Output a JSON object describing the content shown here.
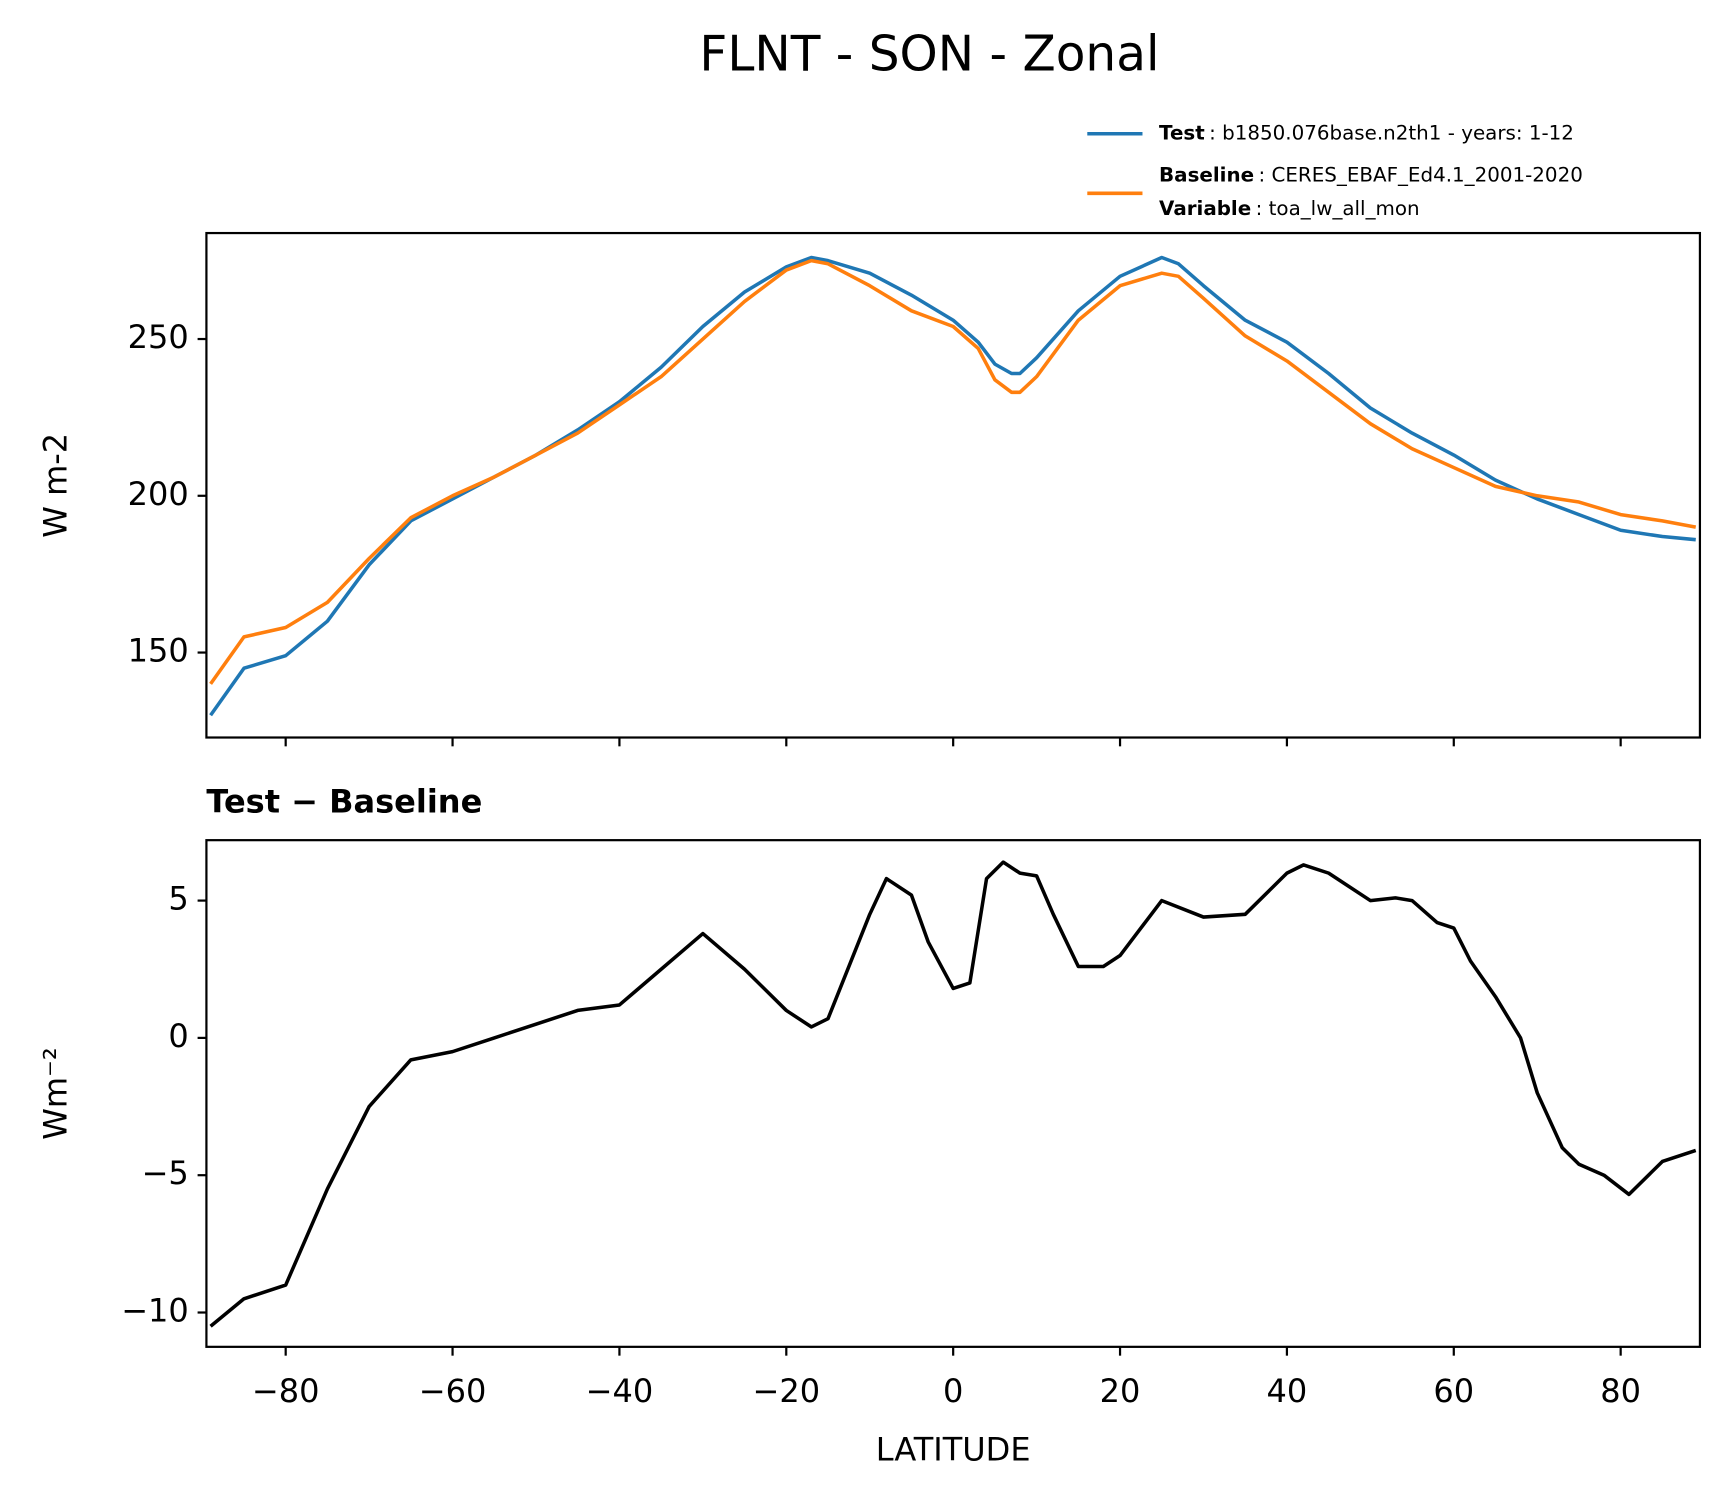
{
  "title": "FLNT - SON - Zonal",
  "chart_data": [
    {
      "type": "line",
      "y_label": "W m-2",
      "x": [
        -89,
        -85,
        -80,
        -75,
        -70,
        -65,
        -60,
        -55,
        -50,
        -45,
        -40,
        -35,
        -30,
        -25,
        -20,
        -17,
        -15,
        -10,
        -5,
        0,
        3,
        5,
        7,
        8,
        10,
        15,
        20,
        25,
        27,
        30,
        35,
        40,
        45,
        50,
        55,
        60,
        65,
        70,
        75,
        80,
        85,
        89
      ],
      "series": [
        {
          "name": "Test",
          "description": ": b1850.076base.n2th1 - years: 1-12",
          "color": "#1f77b4",
          "values": [
            130,
            145,
            149,
            160,
            178,
            192,
            199,
            206,
            213,
            221,
            230,
            241,
            254,
            265,
            273,
            276,
            275,
            271,
            264,
            256,
            249,
            242,
            239,
            239,
            244,
            259,
            270,
            276,
            274,
            267,
            256,
            249,
            239,
            228,
            220,
            213,
            205,
            199,
            194,
            189,
            187,
            186
          ]
        },
        {
          "name": "Baseline",
          "description": ": CERES_EBAF_Ed4.1_2001-2020",
          "color": "#ff7f0e",
          "values": [
            140,
            155,
            158,
            166,
            180,
            193,
            200,
            206,
            213,
            220,
            229,
            238,
            250,
            262,
            272,
            275,
            274,
            267,
            259,
            254,
            247,
            237,
            233,
            233,
            238,
            256,
            267,
            271,
            270,
            263,
            251,
            243,
            233,
            223,
            215,
            209,
            203,
            200,
            198,
            194,
            192,
            190
          ]
        }
      ],
      "legend_note": {
        "label": "Variable",
        "text": ": toa_lw_all_mon"
      },
      "xlim": [
        -89.5,
        89.5
      ],
      "xticks": [
        -80,
        -60,
        -40,
        -20,
        0,
        20,
        40,
        60,
        80
      ],
      "ylim": [
        122.9,
        283.8
      ],
      "yticks": [
        150,
        200,
        250
      ]
    },
    {
      "type": "line",
      "subtitle": "Test − Baseline",
      "x_label": "LATITUDE",
      "y_label": "Wm⁻²",
      "x": [
        -89,
        -85,
        -80,
        -75,
        -70,
        -65,
        -60,
        -55,
        -50,
        -45,
        -40,
        -35,
        -30,
        -25,
        -20,
        -17,
        -15,
        -10,
        -8,
        -5,
        -3,
        0,
        2,
        4,
        6,
        8,
        10,
        12,
        15,
        18,
        20,
        25,
        30,
        35,
        40,
        42,
        45,
        50,
        53,
        55,
        58,
        60,
        62,
        65,
        68,
        70,
        73,
        75,
        78,
        81,
        85,
        89
      ],
      "series": [
        {
          "name": "Test − Baseline",
          "color": "#000000",
          "values": [
            -10.5,
            -9.5,
            -9,
            -5.5,
            -2.5,
            -0.8,
            -0.5,
            0,
            0.5,
            1,
            1.2,
            2.5,
            3.8,
            2.5,
            1,
            0.4,
            0.7,
            4.5,
            5.8,
            5.2,
            3.5,
            1.8,
            2,
            5.8,
            6.4,
            6,
            5.9,
            4.5,
            2.6,
            2.6,
            3,
            5,
            4.4,
            4.5,
            6,
            6.3,
            6,
            5,
            5.1,
            5,
            4.2,
            4,
            2.8,
            1.5,
            0,
            -2,
            -4,
            -4.6,
            -5,
            -5.7,
            -4.5,
            -4.1
          ]
        }
      ],
      "xlim": [
        -89.5,
        89.5
      ],
      "xticks": [
        {
          "value": -80,
          "label": "−80"
        },
        {
          "value": -60,
          "label": "−60"
        },
        {
          "value": -40,
          "label": "−40"
        },
        {
          "value": -20,
          "label": "−20"
        },
        0,
        20,
        40,
        60,
        80
      ],
      "ylim": [
        -11.25,
        7.2
      ],
      "yticks": [
        {
          "value": -10,
          "label": "−10"
        },
        {
          "value": -5,
          "label": "−5"
        },
        0,
        5
      ]
    }
  ]
}
